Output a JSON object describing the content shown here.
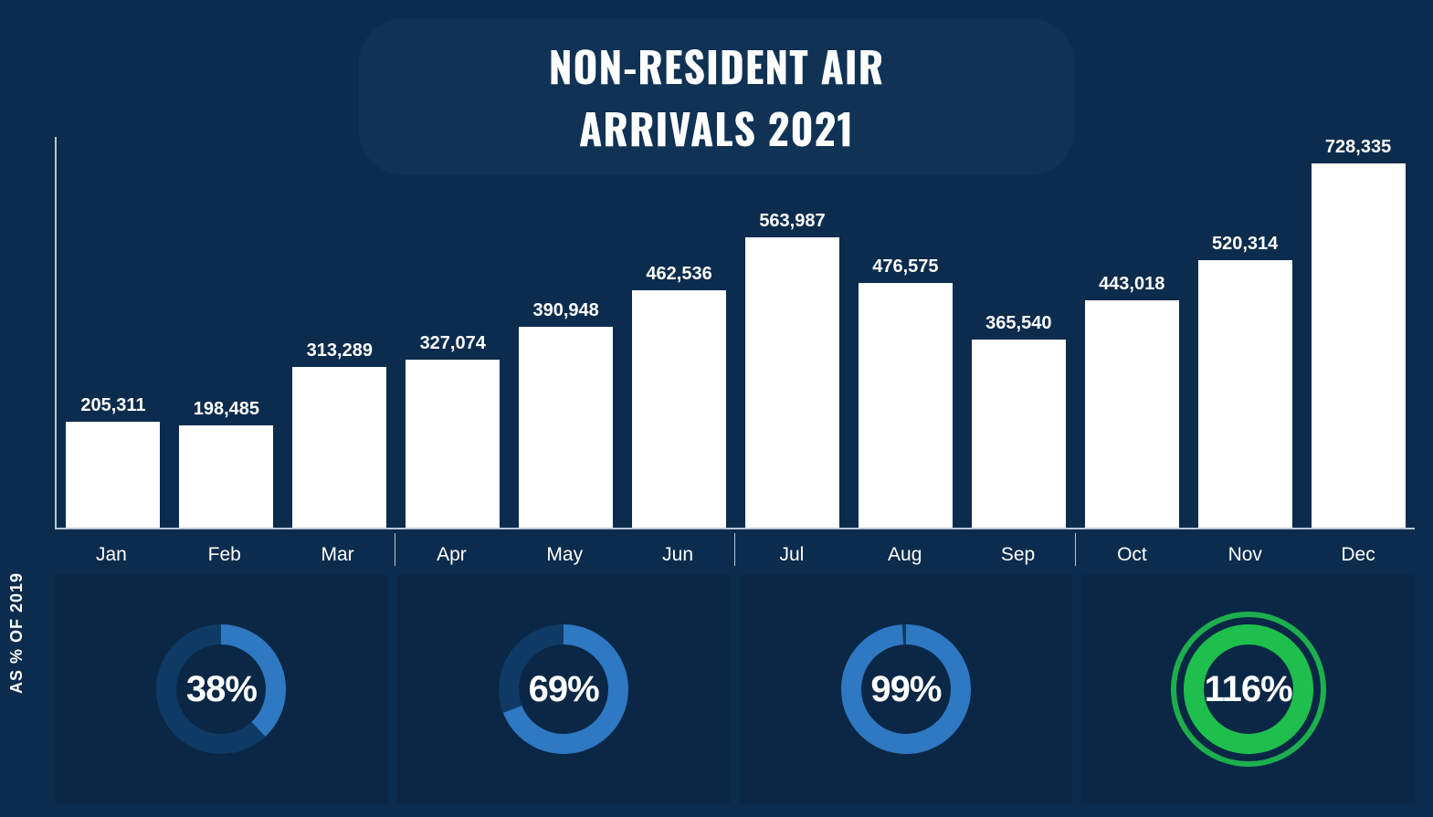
{
  "title": "NON-RESIDENT AIR ARRIVALS 2021",
  "side_label": "AS % OF 2019",
  "chart": {
    "type": "bar",
    "bar_color": "#ffffff",
    "background_color": "#0c2c4d",
    "axis_color": "#b8c6d6",
    "label_color": "#ffffff",
    "label_fontsize": 20,
    "month_fontsize": 21,
    "y_max": 760000,
    "quarters": [
      {
        "months": [
          {
            "name": "Jan",
            "value": 205311,
            "label": "205,311"
          },
          {
            "name": "Feb",
            "value": 198485,
            "label": "198,485"
          },
          {
            "name": "Mar",
            "value": 313289,
            "label": "313,289"
          }
        ],
        "pct_label": "38%",
        "pct_value": 38,
        "ring_color": "#2f78c2",
        "ring_track": "#0f3a64",
        "outer_glow": false
      },
      {
        "months": [
          {
            "name": "Apr",
            "value": 327074,
            "label": "327,074"
          },
          {
            "name": "May",
            "value": 390948,
            "label": "390,948"
          },
          {
            "name": "Jun",
            "value": 462536,
            "label": "462,536"
          }
        ],
        "pct_label": "69%",
        "pct_value": 69,
        "ring_color": "#2f78c2",
        "ring_track": "#0f3a64",
        "outer_glow": false
      },
      {
        "months": [
          {
            "name": "Jul",
            "value": 563987,
            "label": "563,987"
          },
          {
            "name": "Aug",
            "value": 476575,
            "label": "476,575"
          },
          {
            "name": "Sep",
            "value": 365540,
            "label": "365,540"
          }
        ],
        "pct_label": "99%",
        "pct_value": 99,
        "ring_color": "#2f78c2",
        "ring_track": "#0f3a64",
        "outer_glow": false
      },
      {
        "months": [
          {
            "name": "Oct",
            "value": 443018,
            "label": "443,018"
          },
          {
            "name": "Nov",
            "value": 520314,
            "label": "520,314"
          },
          {
            "name": "Dec",
            "value": 728335,
            "label": "728,335"
          }
        ],
        "pct_label": "116%",
        "pct_value": 116,
        "ring_color": "#1fbf4e",
        "ring_track": "#0d6b2e",
        "outer_glow": true,
        "glow_color": "#1fbf4e"
      }
    ]
  }
}
